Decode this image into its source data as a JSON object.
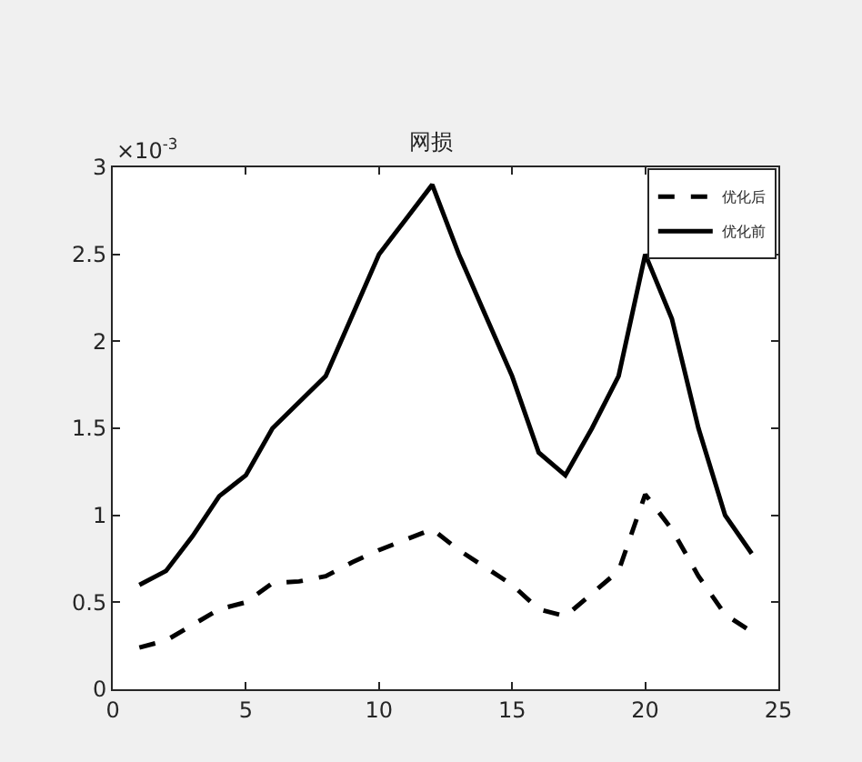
{
  "chart_data": {
    "type": "line",
    "title": "网损",
    "annotations": [
      "×10$^{-3}$"
    ],
    "x": [
      1,
      2,
      3,
      4,
      5,
      6,
      7,
      8,
      9,
      10,
      11,
      12,
      13,
      14,
      15,
      16,
      17,
      18,
      19,
      20,
      21,
      22,
      23,
      24
    ],
    "series": [
      {
        "name": "优化后",
        "color": "#000000",
        "line_style": "dashed",
        "values": [
          0.24,
          0.28,
          0.37,
          0.46,
          0.5,
          0.61,
          0.62,
          0.65,
          0.73,
          0.8,
          0.86,
          0.92,
          0.8,
          0.7,
          0.6,
          0.46,
          0.42,
          0.55,
          0.68,
          1.12,
          0.92,
          0.65,
          0.43,
          0.33
        ]
      },
      {
        "name": "优化前",
        "color": "#000000",
        "line_style": "solid",
        "values": [
          0.6,
          0.68,
          0.88,
          1.11,
          1.23,
          1.5,
          1.65,
          1.8,
          2.15,
          2.5,
          2.7,
          2.9,
          2.5,
          2.15,
          1.8,
          1.36,
          1.23,
          1.5,
          1.8,
          2.5,
          2.13,
          1.5,
          1.0,
          0.78
        ]
      }
    ],
    "xlim": [
      0,
      25
    ],
    "xticks": [
      0,
      5,
      10,
      15,
      20,
      25
    ],
    "ylim": [
      0,
      3
    ],
    "yticks": [
      0,
      0.5,
      1,
      1.5,
      2,
      2.5,
      3
    ],
    "legend": "top right",
    "marker": "none"
  }
}
